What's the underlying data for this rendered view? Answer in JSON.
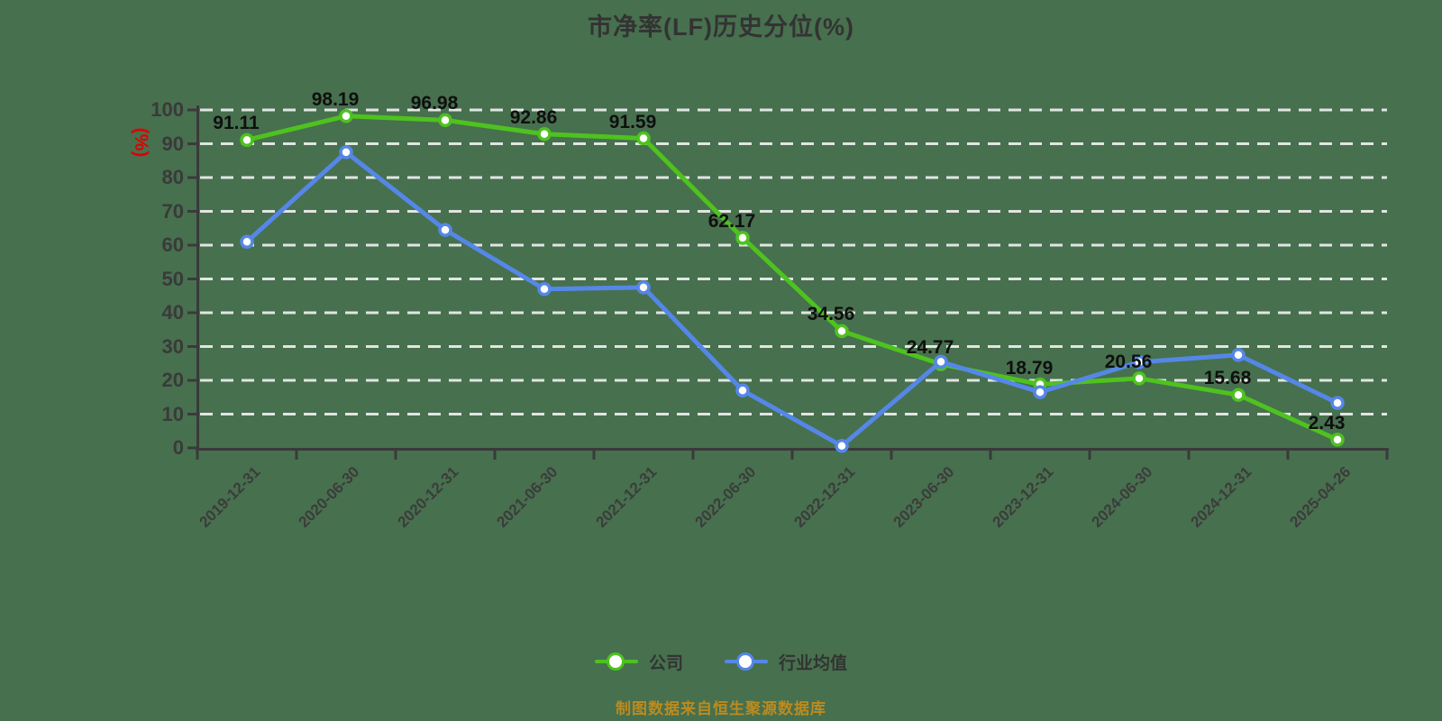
{
  "page": {
    "background": "#47704e"
  },
  "chart_data": {
    "type": "line",
    "title": "市净率(LF)历史分位(%)",
    "xlabel": "",
    "ylabel": "(%)",
    "ylim": [
      0,
      100
    ],
    "yticks": [
      0,
      10,
      20,
      30,
      40,
      50,
      60,
      70,
      80,
      90,
      100
    ],
    "grid": true,
    "grid_style": "white dashed horizontal",
    "legend_position": "bottom",
    "categories": [
      "2019-12-31",
      "2020-06-30",
      "2020-12-31",
      "2021-06-30",
      "2021-12-31",
      "2022-06-30",
      "2022-12-31",
      "2023-06-30",
      "2023-12-31",
      "2024-06-30",
      "2024-12-31",
      "2025-04-26"
    ],
    "series": [
      {
        "name": "公司",
        "color": "#4ec21f",
        "labels_visible": true,
        "values": [
          91.11,
          98.19,
          96.98,
          92.86,
          91.59,
          62.17,
          34.56,
          24.77,
          18.79,
          20.56,
          15.68,
          2.43
        ]
      },
      {
        "name": "行业均值",
        "color": "#5587e8",
        "labels_visible": false,
        "values": [
          61,
          87.5,
          64.5,
          47,
          47.5,
          17,
          0.6,
          25.5,
          16.5,
          25.4,
          27.5,
          13.3
        ]
      }
    ]
  },
  "caption": {
    "text": "制图数据来自恒生聚源数据库",
    "color": "#bb8b1f"
  },
  "colors": {
    "background": "#47704e",
    "grid": "#efefef",
    "axis": "#3a3a3a",
    "tick_label": "#3a3a3a",
    "x_label": "#3c3c3c",
    "data_label": "#0f0f0f",
    "title": "#333333",
    "ylabel_red": "#e00000",
    "marker_fill": "#ffffff"
  }
}
